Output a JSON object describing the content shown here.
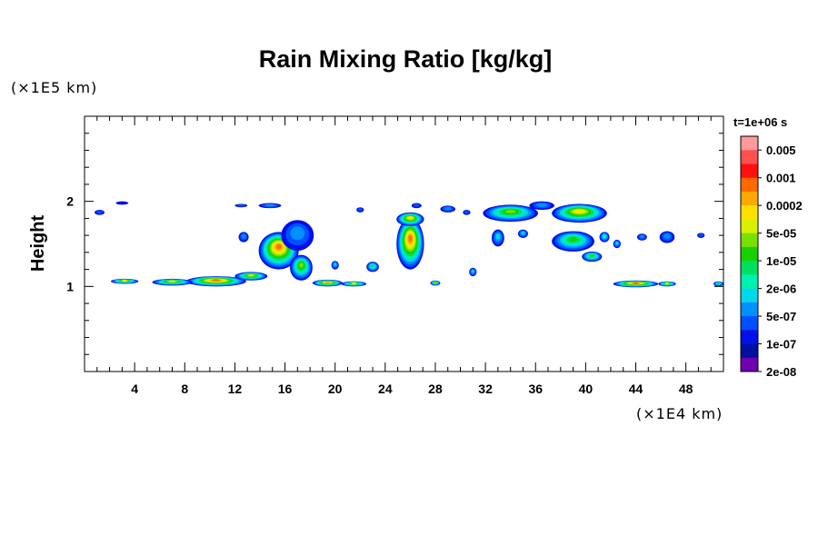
{
  "chart_data": {
    "type": "heatmap",
    "title": "Rain Mixing Ratio [kg/kg]",
    "ylabel": "Height",
    "xscale_label": "(×1E4 km)",
    "yscale_label": "(×1E5 km)",
    "time_label": "t=1e+06 s",
    "xlim": [
      0,
      51
    ],
    "ylim": [
      0,
      3
    ],
    "xticks": [
      4,
      8,
      12,
      16,
      20,
      24,
      28,
      32,
      36,
      40,
      44,
      48
    ],
    "yticks": [
      1,
      2
    ],
    "legend": {
      "placement": "right",
      "levels": [
        "0.005",
        "0.001",
        "0.0002",
        "5e-05",
        "1e-05",
        "2e-06",
        "5e-07",
        "1e-07",
        "2e-08"
      ],
      "colors": [
        "#ff9a9a",
        "#ff5050",
        "#ff1010",
        "#ff6a00",
        "#ffa800",
        "#ffe000",
        "#d8f000",
        "#7ae000",
        "#18d000",
        "#00e060",
        "#00f0b0",
        "#00d8e8",
        "#0090ff",
        "#0050ff",
        "#0010e8",
        "#0010a0",
        "#7000b0"
      ]
    },
    "regions": [
      {
        "x": 10.5,
        "y": 1.06,
        "rx": 2.4,
        "ry": 0.06,
        "peak": 3
      },
      {
        "x": 7.0,
        "y": 1.05,
        "rx": 1.6,
        "ry": 0.04,
        "peak": 6
      },
      {
        "x": 3.2,
        "y": 1.06,
        "rx": 1.1,
        "ry": 0.03,
        "peak": 6
      },
      {
        "x": 13.3,
        "y": 1.12,
        "rx": 1.3,
        "ry": 0.05,
        "peak": 6
      },
      {
        "x": 15.5,
        "y": 1.42,
        "rx": 1.6,
        "ry": 0.22,
        "peak": 3
      },
      {
        "x": 17.0,
        "y": 1.6,
        "rx": 1.3,
        "ry": 0.18,
        "peak": 12
      },
      {
        "x": 17.3,
        "y": 1.22,
        "rx": 0.9,
        "ry": 0.15,
        "peak": 7
      },
      {
        "x": 19.4,
        "y": 1.04,
        "rx": 1.2,
        "ry": 0.04,
        "peak": 4
      },
      {
        "x": 21.5,
        "y": 1.03,
        "rx": 1.0,
        "ry": 0.03,
        "peak": 6
      },
      {
        "x": 26.0,
        "y": 1.5,
        "rx": 1.1,
        "ry": 0.3,
        "peak": 3
      },
      {
        "x": 26.0,
        "y": 1.79,
        "rx": 1.1,
        "ry": 0.08,
        "peak": 5
      },
      {
        "x": 34.0,
        "y": 1.86,
        "rx": 2.2,
        "ry": 0.1,
        "peak": 7
      },
      {
        "x": 39.5,
        "y": 1.86,
        "rx": 2.2,
        "ry": 0.11,
        "peak": 5
      },
      {
        "x": 39.0,
        "y": 1.53,
        "rx": 1.7,
        "ry": 0.12,
        "peak": 8
      },
      {
        "x": 40.5,
        "y": 1.35,
        "rx": 0.8,
        "ry": 0.06,
        "peak": 8
      },
      {
        "x": 44.0,
        "y": 1.03,
        "rx": 1.8,
        "ry": 0.04,
        "peak": 3
      },
      {
        "x": 46.5,
        "y": 1.03,
        "rx": 0.7,
        "ry": 0.03,
        "peak": 6
      },
      {
        "x": 14.8,
        "y": 1.95,
        "rx": 0.9,
        "ry": 0.03,
        "peak": 12
      },
      {
        "x": 12.5,
        "y": 1.95,
        "rx": 0.5,
        "ry": 0.02,
        "peak": 13
      },
      {
        "x": 22.0,
        "y": 1.9,
        "rx": 0.3,
        "ry": 0.03,
        "peak": 13
      },
      {
        "x": 26.5,
        "y": 1.95,
        "rx": 0.4,
        "ry": 0.03,
        "peak": 13
      },
      {
        "x": 29.0,
        "y": 1.91,
        "rx": 0.6,
        "ry": 0.04,
        "peak": 12
      },
      {
        "x": 46.5,
        "y": 1.58,
        "rx": 0.6,
        "ry": 0.07,
        "peak": 12
      },
      {
        "x": 44.5,
        "y": 1.58,
        "rx": 0.4,
        "ry": 0.04,
        "peak": 12
      },
      {
        "x": 49.2,
        "y": 1.6,
        "rx": 0.3,
        "ry": 0.03,
        "peak": 13
      },
      {
        "x": 12.7,
        "y": 1.58,
        "rx": 0.4,
        "ry": 0.06,
        "peak": 12
      },
      {
        "x": 42.5,
        "y": 1.5,
        "rx": 0.3,
        "ry": 0.05,
        "peak": 11
      },
      {
        "x": 33.0,
        "y": 1.57,
        "rx": 0.5,
        "ry": 0.1,
        "peak": 11
      },
      {
        "x": 35.0,
        "y": 1.62,
        "rx": 0.4,
        "ry": 0.05,
        "peak": 11
      },
      {
        "x": 23.0,
        "y": 1.23,
        "rx": 0.5,
        "ry": 0.06,
        "peak": 9
      },
      {
        "x": 1.2,
        "y": 1.87,
        "rx": 0.4,
        "ry": 0.03,
        "peak": 13
      },
      {
        "x": 3.0,
        "y": 1.98,
        "rx": 0.5,
        "ry": 0.02,
        "peak": 15
      },
      {
        "x": 36.5,
        "y": 1.95,
        "rx": 1.0,
        "ry": 0.05,
        "peak": 12
      },
      {
        "x": 20.0,
        "y": 1.25,
        "rx": 0.3,
        "ry": 0.05,
        "peak": 11
      },
      {
        "x": 28.0,
        "y": 1.04,
        "rx": 0.4,
        "ry": 0.03,
        "peak": 7
      },
      {
        "x": 31.0,
        "y": 1.17,
        "rx": 0.3,
        "ry": 0.05,
        "peak": 11
      },
      {
        "x": 50.6,
        "y": 1.03,
        "rx": 0.4,
        "ry": 0.03,
        "peak": 9
      },
      {
        "x": 41.5,
        "y": 1.58,
        "rx": 0.4,
        "ry": 0.06,
        "peak": 10
      },
      {
        "x": 30.5,
        "y": 1.87,
        "rx": 0.3,
        "ry": 0.03,
        "peak": 13
      }
    ]
  }
}
